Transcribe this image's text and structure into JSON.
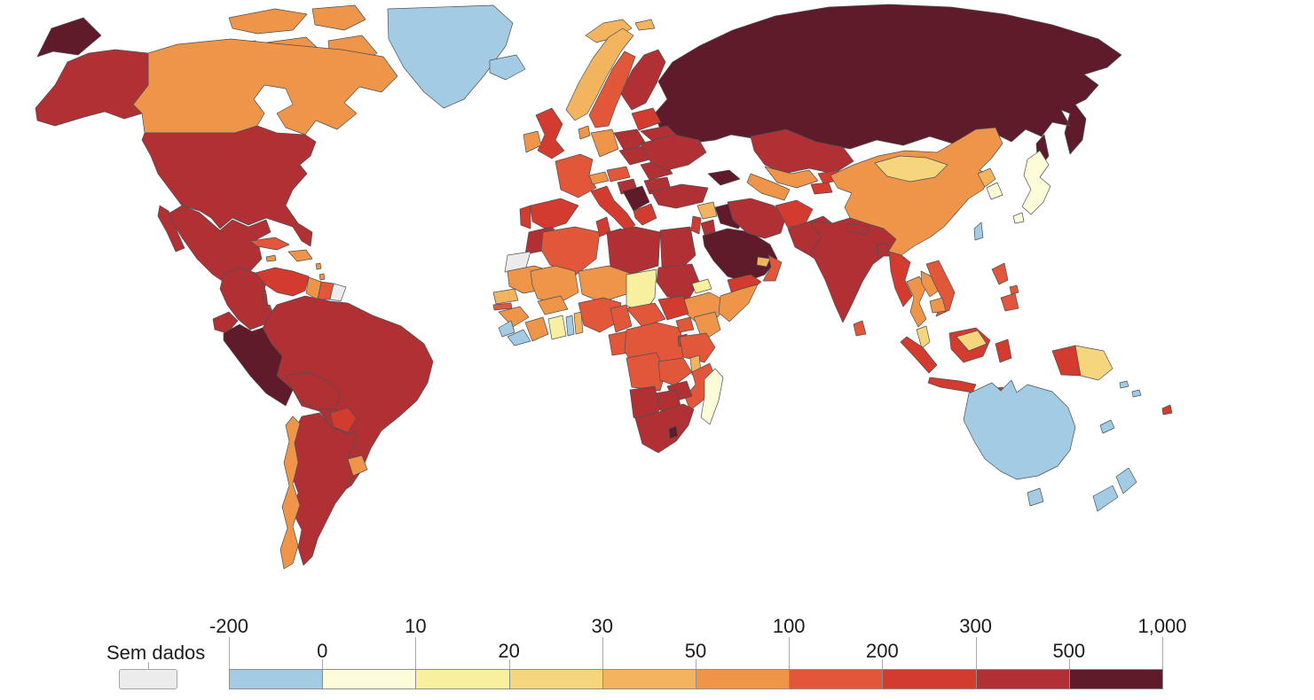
{
  "legend": {
    "no_data_label": "Sem dados",
    "no_data_color": "#ececec",
    "ticks": [
      {
        "label": "-200",
        "row": "top",
        "index": 0
      },
      {
        "label": "0",
        "row": "bottom",
        "index": 1
      },
      {
        "label": "10",
        "row": "top",
        "index": 2
      },
      {
        "label": "20",
        "row": "bottom",
        "index": 3
      },
      {
        "label": "30",
        "row": "top",
        "index": 4
      },
      {
        "label": "50",
        "row": "bottom",
        "index": 5
      },
      {
        "label": "100",
        "row": "top",
        "index": 6
      },
      {
        "label": "200",
        "row": "bottom",
        "index": 7
      },
      {
        "label": "300",
        "row": "top",
        "index": 8
      },
      {
        "label": "500",
        "row": "bottom",
        "index": 9
      },
      {
        "label": "1,000",
        "row": "top",
        "index": 10
      }
    ],
    "bins": [
      {
        "id": "b1",
        "range": "-200 to 0",
        "color": "#a3cbe3"
      },
      {
        "id": "b2",
        "range": "0 to 10",
        "color": "#fdfcd8"
      },
      {
        "id": "b3",
        "range": "10 to 20",
        "color": "#f8ef9f"
      },
      {
        "id": "b4",
        "range": "20 to 30",
        "color": "#f6d67d"
      },
      {
        "id": "b5",
        "range": "30 to 50",
        "color": "#f2b45e"
      },
      {
        "id": "b6",
        "range": "50 to 100",
        "color": "#ef9549"
      },
      {
        "id": "b7",
        "range": "100 to 200",
        "color": "#e2573a"
      },
      {
        "id": "b8",
        "range": "200 to 300",
        "color": "#d23b2e"
      },
      {
        "id": "b9",
        "range": "300 to 500",
        "color": "#b13034"
      },
      {
        "id": "b10",
        "range": "500 to 1,000",
        "color": "#5f1b29"
      }
    ]
  },
  "map": {
    "ocean_color": "#ffffff",
    "border_color": "#4a5055",
    "countries": {
      "greenland": "b1",
      "iceland": "b1",
      "canada": "b6",
      "alaska": "b9",
      "usa": "b9",
      "mexico": "b9",
      "guatemala": "b7",
      "honduras": "b9",
      "nicaragua": "b9",
      "costa-rica": "b8",
      "panama": "b8",
      "cuba": "b7",
      "hispaniola": "b6",
      "jamaica": "b6",
      "lesser-antilles": "b6",
      "colombia": "b9",
      "venezuela": "b8",
      "guyana": "b6",
      "suriname": "b7",
      "french-guiana": "no-data",
      "ecuador": "b9",
      "peru": "b10",
      "brazil": "b9",
      "bolivia": "b9",
      "paraguay": "b8",
      "uruguay": "b6",
      "argentina": "b9",
      "chile": "b6",
      "uk": "b8",
      "ireland": "b6",
      "norway": "b5",
      "svalbard": "b5",
      "sweden": "b7",
      "finland": "b9",
      "denmark": "b6",
      "baltics": "b8",
      "belarus": "b9",
      "poland": "b9",
      "germany": "b6",
      "france": "b7",
      "spain": "b8",
      "portugal": "b8",
      "italy": "b8",
      "switzerland": "b6",
      "austria": "b7",
      "czech-slovakia-hungary": "b9",
      "romania": "b9",
      "balkans": "b10",
      "croatia": "b9",
      "bulgaria": "b9",
      "greece": "b8",
      "ukraine": "b9",
      "russia": "b10",
      "caucasus": "b10",
      "turkey": "b9",
      "syria": "b5",
      "levant": "b8",
      "jordan": "b9",
      "iraq": "b10",
      "saudi-arabia": "b10",
      "yemen": "b8",
      "oman": "b7",
      "uae": "b5",
      "iran": "b9",
      "kazakhstan": "b9",
      "uzbekistan": "b6",
      "turkmenistan": "b6",
      "kyrgyzstan": "b8",
      "tajikistan": "b8",
      "afghanistan": "b8",
      "pakistan": "b9",
      "india": "b9",
      "nepal": "b9",
      "bangladesh": "b9",
      "sri-lanka": "b7",
      "china": "b6",
      "mongolia": "b4",
      "north-korea": "b5",
      "south-korea": "b2",
      "japan": "b2",
      "taiwan": "b1",
      "myanmar": "b8",
      "thailand": "b6",
      "laos": "b6",
      "vietnam": "b7",
      "cambodia": "b6",
      "malaysia": "b4",
      "indonesia": "b8",
      "png": "b4",
      "philippines": "b7",
      "australia": "b1",
      "new-zealand": "b1",
      "new-caledonia": "b1",
      "fiji": "b8",
      "solomon": "b1",
      "morocco": "b9",
      "western-sahara": "no-data",
      "algeria": "b7",
      "tunisia": "b8",
      "libya": "b9",
      "egypt": "b9",
      "mauritania": "b6",
      "senegal": "b5",
      "gambia": "b7",
      "guinea": "b6",
      "sierra-leone": "b1",
      "liberia": "b1",
      "ivory-coast": "b6",
      "ghana": "b3",
      "togo": "b1",
      "benin": "b5",
      "burkina-faso": "b6",
      "mali": "b6",
      "niger": "b6",
      "nigeria": "b7",
      "chad": "b3",
      "sudan": "b9",
      "eritrea": "b3",
      "ethiopia": "b6",
      "somalia": "b6",
      "south-sudan": "b8",
      "central-african-republic": "b7",
      "cameroon": "b7",
      "drc": "b7",
      "congo-gabon": "b7",
      "uganda": "b7",
      "kenya": "b6",
      "rwanda-burundi": "b8",
      "tanzania": "b7",
      "angola": "b7",
      "zambia": "b7",
      "malawi": "b5",
      "mozambique": "b7",
      "zimbabwe": "b9",
      "botswana": "b9",
      "namibia": "b9",
      "south-africa": "b9",
      "lesotho": "b10",
      "madagascar": "b2"
    }
  }
}
